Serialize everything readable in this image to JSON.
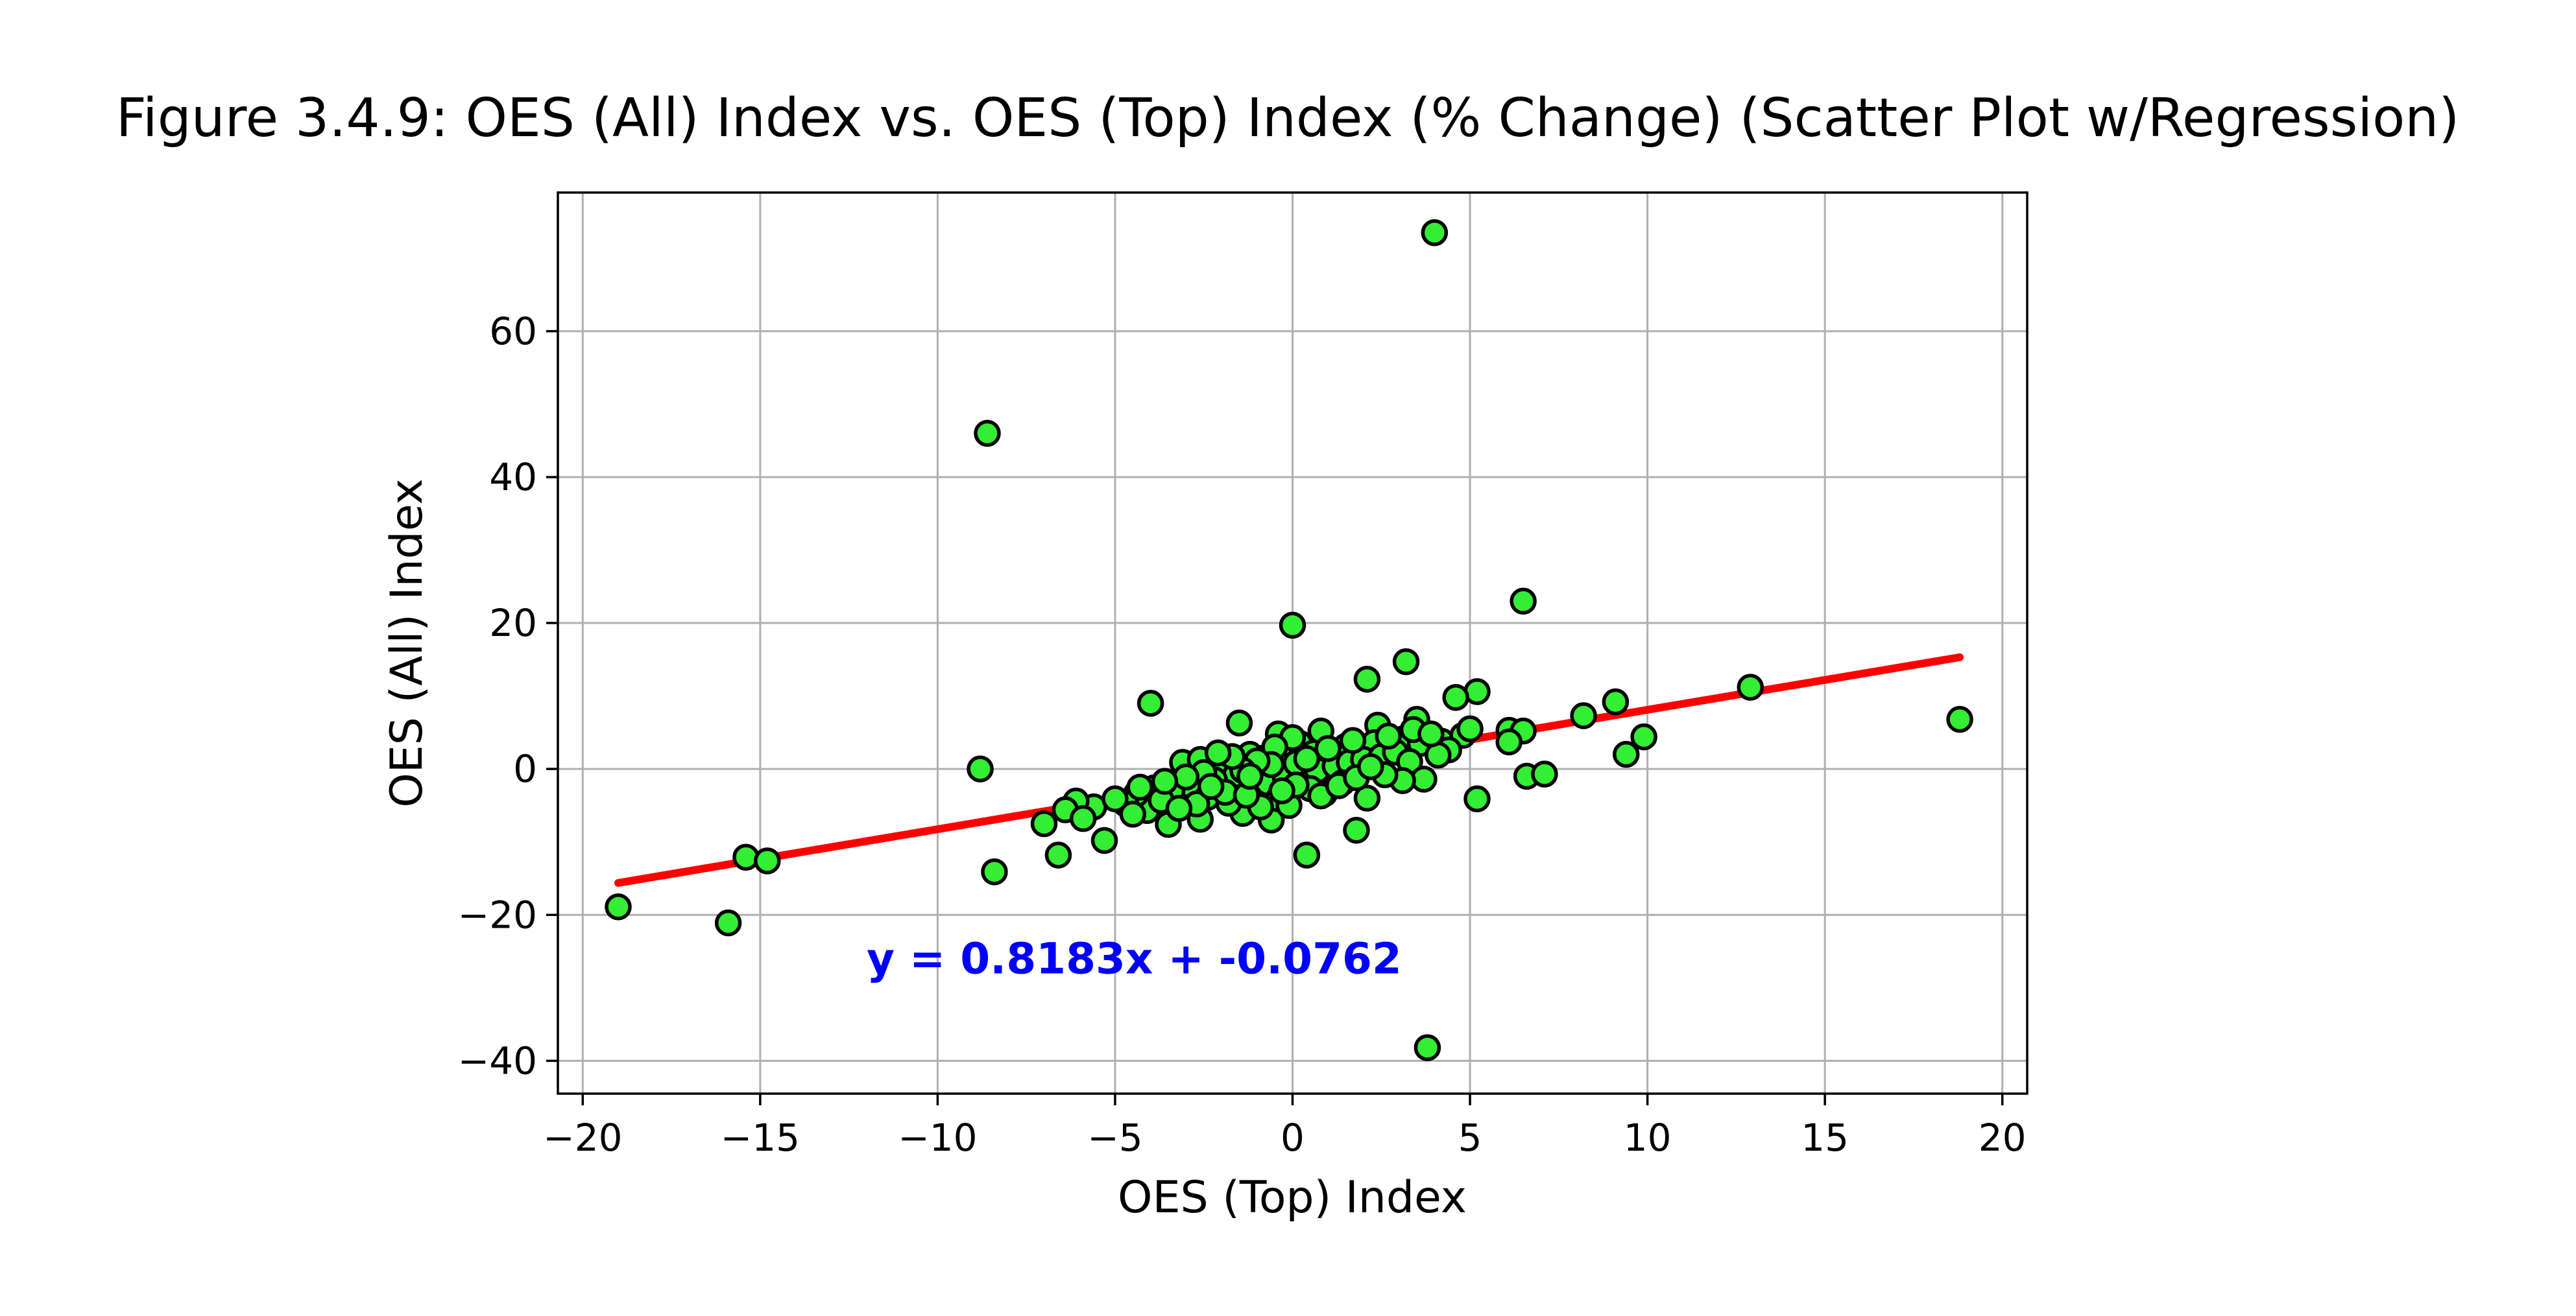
{
  "chart_data": {
    "type": "scatter",
    "title": "Figure 3.4.9: OES (All) Index vs. OES (Top) Index (% Change) (Scatter Plot w/Regression)",
    "xlabel": "OES (Top) Index",
    "ylabel": "OES (All) Index",
    "xlim": [
      -20.7,
      20.7
    ],
    "ylim": [
      -44.5,
      79.0
    ],
    "xticks": [
      -20,
      -15,
      -10,
      -5,
      0,
      5,
      10,
      15,
      20
    ],
    "xtick_labels": [
      "−20",
      "−15",
      "−10",
      "−5",
      "0",
      "5",
      "10",
      "15",
      "20"
    ],
    "yticks": [
      -40,
      -20,
      0,
      20,
      40,
      60
    ],
    "ytick_labels": [
      "−40",
      "−20",
      "0",
      "20",
      "40",
      "60"
    ],
    "grid": true,
    "marker_color": "#33ee33",
    "marker_edge_color": "#000000",
    "regression": {
      "slope": 0.8183,
      "intercept": -0.0762,
      "x_range": [
        -19.0,
        18.8
      ],
      "color": "#ff0000",
      "equation_label": "y = 0.8183x + -0.0762",
      "equation_color": "#0000ff",
      "equation_anchor": [
        -12.0,
        -28.0
      ]
    },
    "points": [
      [
        4.0,
        73.5
      ],
      [
        -8.6,
        46.0
      ],
      [
        6.5,
        23.0
      ],
      [
        0.0,
        19.7
      ],
      [
        3.2,
        14.7
      ],
      [
        2.1,
        12.3
      ],
      [
        5.2,
        10.6
      ],
      [
        4.6,
        9.8
      ],
      [
        -4.0,
        9.0
      ],
      [
        9.1,
        9.2
      ],
      [
        12.9,
        11.2
      ],
      [
        18.8,
        6.8
      ],
      [
        8.2,
        7.3
      ],
      [
        9.9,
        4.4
      ],
      [
        9.4,
        2.0
      ],
      [
        6.1,
        5.3
      ],
      [
        6.5,
        5.2
      ],
      [
        6.1,
        3.7
      ],
      [
        6.6,
        -1.0
      ],
      [
        7.1,
        -0.7
      ],
      [
        5.2,
        -4.1
      ],
      [
        3.8,
        -38.2
      ],
      [
        0.4,
        -11.8
      ],
      [
        -6.6,
        -11.8
      ],
      [
        -8.4,
        -14.1
      ],
      [
        -8.8,
        0.0
      ],
      [
        -15.4,
        -12.1
      ],
      [
        -14.8,
        -12.6
      ],
      [
        -19.0,
        -18.9
      ],
      [
        -15.9,
        -21.1
      ],
      [
        1.8,
        -8.4
      ],
      [
        2.1,
        -4.0
      ],
      [
        -5.3,
        -9.8
      ],
      [
        -7.0,
        -7.5
      ],
      [
        -1.4,
        -6.1
      ],
      [
        -3.5,
        -7.6
      ],
      [
        -4.1,
        -5.7
      ],
      [
        -2.6,
        -6.9
      ],
      [
        -0.6,
        -7.0
      ],
      [
        -1.8,
        -4.7
      ],
      [
        -1.5,
        6.3
      ],
      [
        -0.4,
        4.8
      ],
      [
        0.8,
        5.2
      ],
      [
        2.4,
        6.0
      ],
      [
        3.5,
        6.8
      ],
      [
        -3.1,
        0.9
      ],
      [
        -2.6,
        1.3
      ],
      [
        -2.0,
        0.5
      ],
      [
        -1.2,
        2.0
      ],
      [
        -0.8,
        1.5
      ],
      [
        -0.3,
        2.8
      ],
      [
        0.2,
        3.5
      ],
      [
        0.6,
        2.2
      ],
      [
        1.1,
        1.8
      ],
      [
        1.5,
        3.1
      ],
      [
        1.9,
        2.5
      ],
      [
        2.3,
        3.6
      ],
      [
        2.8,
        2.9
      ],
      [
        3.1,
        4.1
      ],
      [
        3.6,
        3.5
      ],
      [
        4.2,
        3.8
      ],
      [
        4.8,
        4.6
      ],
      [
        5.0,
        5.5
      ],
      [
        0.0,
        4.3
      ],
      [
        -0.5,
        3.0
      ],
      [
        -1.6,
        -0.8
      ],
      [
        -2.2,
        -1.5
      ],
      [
        -2.9,
        -2.2
      ],
      [
        -3.4,
        -3.1
      ],
      [
        -3.9,
        -2.6
      ],
      [
        -4.4,
        -3.4
      ],
      [
        -4.7,
        -4.8
      ],
      [
        -5.6,
        -5.2
      ],
      [
        -6.1,
        -4.4
      ],
      [
        -6.4,
        -5.6
      ],
      [
        -5.9,
        -6.8
      ],
      [
        -4.3,
        -2.5
      ],
      [
        -3.7,
        -4.3
      ],
      [
        -2.4,
        -3.9
      ],
      [
        -1.9,
        -3.2
      ],
      [
        -1.1,
        -2.7
      ],
      [
        -0.7,
        -1.9
      ],
      [
        -0.2,
        -1.2
      ],
      [
        0.3,
        -0.6
      ],
      [
        0.7,
        -0.2
      ],
      [
        1.2,
        0.4
      ],
      [
        1.6,
        0.9
      ],
      [
        2.0,
        1.3
      ],
      [
        2.5,
        1.7
      ],
      [
        2.9,
        2.3
      ],
      [
        3.3,
        1.0
      ],
      [
        3.7,
        -1.4
      ],
      [
        3.1,
        -1.6
      ],
      [
        2.6,
        -0.8
      ],
      [
        1.4,
        -1.9
      ],
      [
        0.9,
        -3.4
      ],
      [
        0.5,
        -2.7
      ],
      [
        -0.4,
        -4.1
      ],
      [
        -0.9,
        -5.2
      ],
      [
        -1.3,
        -3.6
      ],
      [
        -2.7,
        -4.8
      ],
      [
        -3.2,
        -5.4
      ],
      [
        -4.5,
        -6.2
      ],
      [
        -5.0,
        -4.1
      ],
      [
        -0.1,
        -5.0
      ],
      [
        0.8,
        -3.7
      ],
      [
        1.3,
        -2.3
      ],
      [
        1.8,
        -1.2
      ],
      [
        2.2,
        0.3
      ],
      [
        -0.6,
        0.6
      ],
      [
        -1.0,
        1.1
      ],
      [
        -1.4,
        -0.2
      ],
      [
        -1.7,
        1.7
      ],
      [
        -2.1,
        2.2
      ],
      [
        -2.5,
        -0.5
      ],
      [
        -3.0,
        -1.1
      ],
      [
        -3.6,
        -1.7
      ],
      [
        0.1,
        0.8
      ],
      [
        0.4,
        1.4
      ],
      [
        0.1,
        -2.2
      ],
      [
        1.0,
        2.8
      ],
      [
        1.7,
        3.9
      ],
      [
        2.7,
        4.5
      ],
      [
        3.4,
        5.4
      ],
      [
        4.4,
        2.6
      ],
      [
        4.1,
        1.9
      ],
      [
        3.9,
        4.8
      ],
      [
        -0.3,
        -3.0
      ],
      [
        -1.2,
        -1.0
      ],
      [
        -2.3,
        -2.4
      ]
    ]
  }
}
